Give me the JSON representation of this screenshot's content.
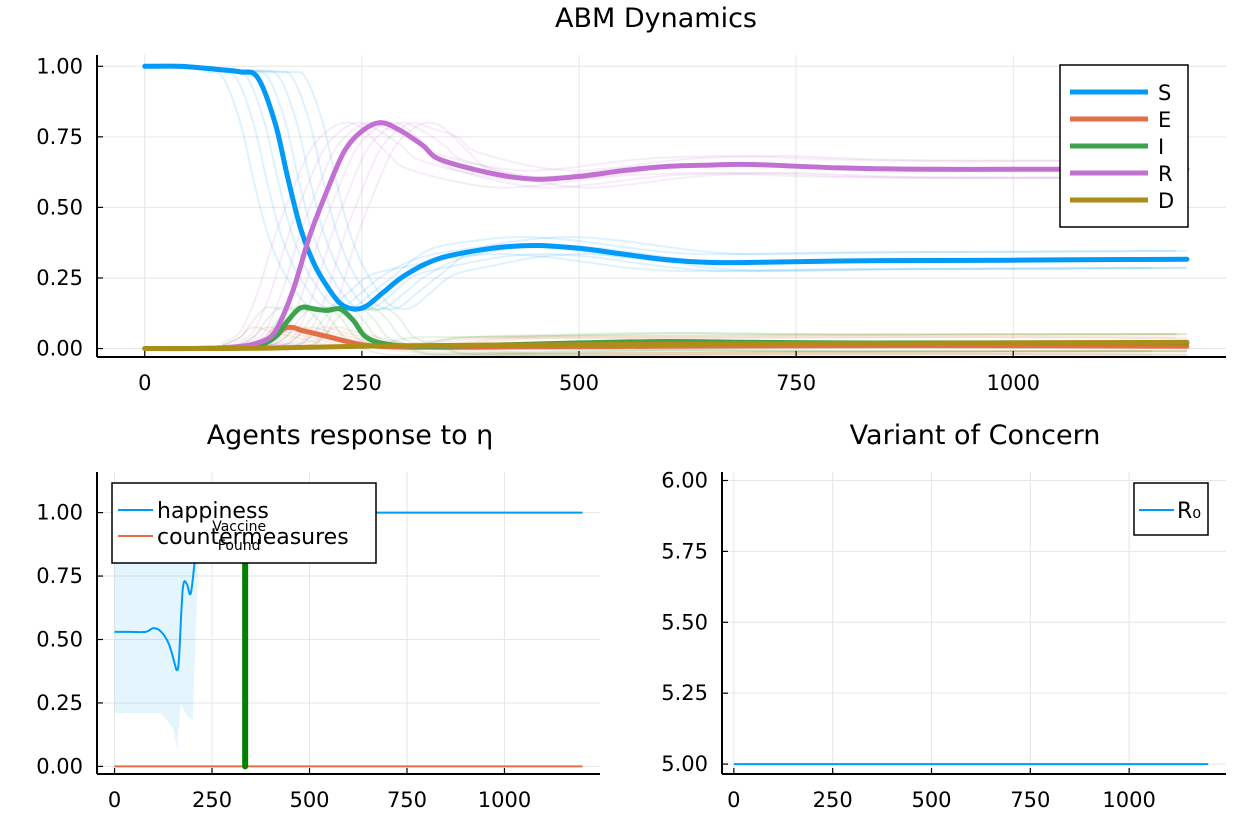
{
  "chart_data": [
    {
      "type": "line",
      "title": "ABM Dynamics",
      "xlabel": "",
      "ylabel": "",
      "xlim": [
        -55,
        1245
      ],
      "ylim": [
        -0.03,
        1.04
      ],
      "xticks": [
        0,
        250,
        500,
        750,
        1000
      ],
      "xtick_labels": [
        "0",
        "250",
        "500",
        "750",
        "1000"
      ],
      "yticks": [
        0,
        0.25,
        0.5,
        0.75,
        1.0
      ],
      "ytick_labels": [
        "0.00",
        "0.25",
        "0.50",
        "0.75",
        "1.00"
      ],
      "grid": true,
      "legend_position": "top-right",
      "series": [
        {
          "name": "S",
          "color": "#009af9",
          "x": [
            0,
            40,
            80,
            110,
            130,
            150,
            165,
            180,
            195,
            210,
            225,
            240,
            255,
            275,
            300,
            340,
            400,
            450,
            500,
            550,
            600,
            650,
            700,
            800,
            900,
            1000,
            1100,
            1200
          ],
          "y": [
            1.0,
            1.0,
            0.99,
            0.98,
            0.96,
            0.8,
            0.6,
            0.42,
            0.3,
            0.22,
            0.16,
            0.14,
            0.15,
            0.2,
            0.26,
            0.32,
            0.355,
            0.365,
            0.355,
            0.335,
            0.315,
            0.305,
            0.305,
            0.31,
            0.312,
            0.313,
            0.315,
            0.316
          ]
        },
        {
          "name": "E",
          "color": "#e26f46",
          "x": [
            0,
            50,
            100,
            130,
            150,
            160,
            170,
            180,
            200,
            220,
            240,
            260,
            300,
            400,
            600,
            800,
            1000,
            1200
          ],
          "y": [
            0.0,
            0.0,
            0.002,
            0.01,
            0.04,
            0.07,
            0.075,
            0.065,
            0.05,
            0.035,
            0.02,
            0.01,
            0.005,
            0.005,
            0.008,
            0.01,
            0.01,
            0.008
          ]
        },
        {
          "name": "I",
          "color": "#3da44d",
          "x": [
            0,
            50,
            100,
            130,
            150,
            165,
            180,
            195,
            210,
            225,
            240,
            255,
            280,
            320,
            400,
            500,
            600,
            700,
            800,
            900,
            1000,
            1100,
            1200
          ],
          "y": [
            0.0,
            0.0,
            0.002,
            0.01,
            0.04,
            0.1,
            0.145,
            0.14,
            0.135,
            0.14,
            0.1,
            0.04,
            0.015,
            0.008,
            0.012,
            0.02,
            0.025,
            0.022,
            0.02,
            0.02,
            0.02,
            0.02,
            0.02
          ]
        },
        {
          "name": "R",
          "color": "#c271d2",
          "x": [
            0,
            50,
            100,
            130,
            150,
            170,
            190,
            210,
            230,
            250,
            270,
            290,
            320,
            340,
            400,
            450,
            500,
            550,
            600,
            650,
            700,
            800,
            900,
            1000,
            1100,
            1200
          ],
          "y": [
            0.0,
            0.0,
            0.005,
            0.02,
            0.06,
            0.2,
            0.4,
            0.56,
            0.7,
            0.77,
            0.8,
            0.78,
            0.72,
            0.67,
            0.62,
            0.6,
            0.61,
            0.63,
            0.645,
            0.65,
            0.652,
            0.64,
            0.635,
            0.635,
            0.635,
            0.635
          ]
        },
        {
          "name": "D",
          "color": "#ac8d18",
          "x": [
            0,
            100,
            150,
            200,
            250,
            300,
            400,
            600,
            800,
            1000,
            1200
          ],
          "y": [
            0.0,
            0.0,
            0.002,
            0.005,
            0.008,
            0.01,
            0.012,
            0.015,
            0.018,
            0.02,
            0.022
          ]
        }
      ]
    },
    {
      "type": "line",
      "title": "Agents response to η",
      "xlabel": "",
      "ylabel": "",
      "xlim": [
        -45,
        1245
      ],
      "ylim": [
        -0.03,
        1.16
      ],
      "xticks": [
        0,
        250,
        500,
        750,
        1000
      ],
      "xtick_labels": [
        "0",
        "250",
        "500",
        "750",
        "1000"
      ],
      "yticks": [
        0,
        0.25,
        0.5,
        0.75,
        1.0
      ],
      "ytick_labels": [
        "0.00",
        "0.25",
        "0.50",
        "0.75",
        "1.00"
      ],
      "grid": true,
      "legend_position": "top-left",
      "series": [
        {
          "name": "happiness",
          "color": "#009af9",
          "x": [
            0,
            40,
            80,
            100,
            120,
            140,
            155,
            160,
            165,
            175,
            185,
            195,
            205,
            215,
            230,
            260,
            300,
            400,
            600,
            800,
            1000,
            1200
          ],
          "y": [
            0.53,
            0.53,
            0.53,
            0.545,
            0.53,
            0.48,
            0.4,
            0.38,
            0.42,
            0.7,
            0.72,
            0.68,
            0.8,
            0.95,
            1.0,
            1.0,
            1.0,
            1.0,
            1.0,
            1.0,
            1.0,
            1.0
          ],
          "band_x": [
            0,
            60,
            120,
            150,
            160,
            170,
            185,
            200,
            215
          ],
          "band_low": [
            0.21,
            0.21,
            0.21,
            0.15,
            0.07,
            0.25,
            0.2,
            0.18,
            0.8
          ],
          "band_high": [
            0.85,
            0.85,
            0.85,
            0.9,
            0.95,
            0.95,
            1.0,
            1.0,
            1.0
          ]
        },
        {
          "name": "countermeasures",
          "color": "#e26f46",
          "x": [
            0,
            1200
          ],
          "y": [
            0.0,
            0.0
          ]
        }
      ],
      "annotation": {
        "x": 335,
        "line_color": "#008000",
        "line1": "Vaccine",
        "line2": "Found"
      }
    },
    {
      "type": "line",
      "title": "Variant of Concern",
      "xlabel": "",
      "ylabel": "",
      "xlim": [
        -30,
        1245
      ],
      "ylim": [
        4.965,
        6.03
      ],
      "xticks": [
        0,
        250,
        500,
        750,
        1000
      ],
      "xtick_labels": [
        "0",
        "250",
        "500",
        "750",
        "1000"
      ],
      "yticks": [
        5.0,
        5.25,
        5.5,
        5.75,
        6.0
      ],
      "ytick_labels": [
        "5.00",
        "5.25",
        "5.50",
        "5.75",
        "6.00"
      ],
      "grid": true,
      "legend_position": "top-right",
      "series": [
        {
          "name": "R₀",
          "color": "#009af9",
          "x": [
            0,
            1200
          ],
          "y": [
            5.0,
            5.0
          ]
        }
      ]
    }
  ]
}
